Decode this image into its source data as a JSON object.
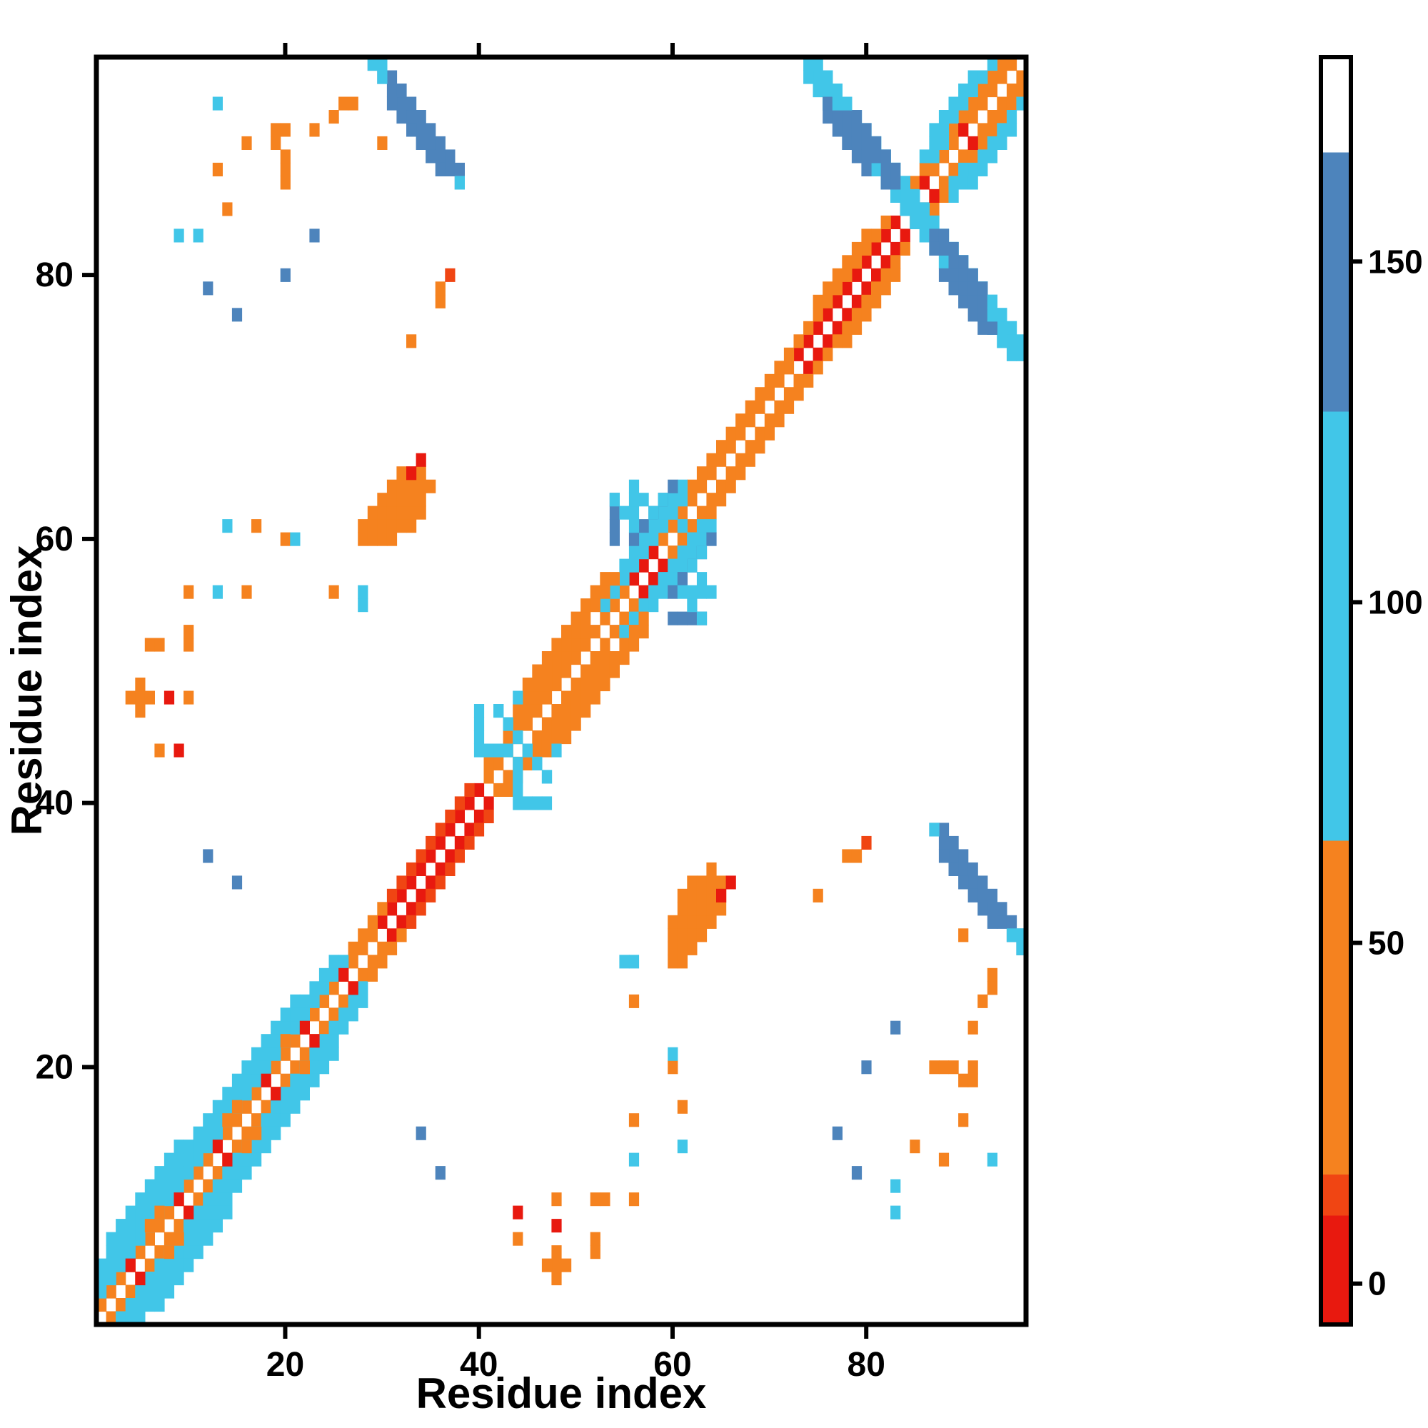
{
  "figure": {
    "background": "#ffffff",
    "frame_color": "#000000"
  },
  "chart_data": {
    "type": "heatmap",
    "title": "",
    "xlabel": "Residue index",
    "ylabel": "Residue index",
    "xlim": [
      0.5,
      96.5
    ],
    "ylim": [
      0.5,
      96.5
    ],
    "x_ticks": [
      20,
      40,
      60,
      80
    ],
    "y_ticks": [
      20,
      40,
      60,
      80
    ],
    "grid": false,
    "symmetric": true,
    "legend_position": "right-colorbar",
    "colorbar": {
      "ticks": [
        0,
        50,
        100,
        150
      ],
      "vmin": -6,
      "vmax": 180,
      "stops": [
        {
          "upto": 10,
          "color": "#e8190f"
        },
        {
          "upto": 16,
          "color": "#f04513"
        },
        {
          "upto": 65,
          "color": "#f5821f"
        },
        {
          "upto": 128,
          "color": "#41c6e8"
        },
        {
          "upto": 166,
          "color": "#4d84bc"
        },
        {
          "upto": 9999,
          "color": "#ffffff"
        }
      ]
    },
    "runs": [
      [
        1,
        2,
        "d",
        29,
        38
      ],
      [
        30,
        31,
        "d",
        11,
        6
      ],
      [
        41,
        42,
        "d",
        12,
        36
      ],
      [
        53,
        54,
        "d",
        3,
        30
      ],
      [
        56,
        57,
        "d",
        3,
        8
      ],
      [
        59,
        60,
        "d",
        14,
        38
      ],
      [
        73,
        74,
        "d",
        12,
        5
      ],
      [
        85,
        86,
        "d",
        11,
        32
      ],
      [
        1,
        3,
        "d",
        26,
        90
      ],
      [
        27,
        29,
        "d",
        4,
        42
      ],
      [
        31,
        33,
        "d",
        9,
        12
      ],
      [
        41,
        43,
        "d",
        11,
        45
      ],
      [
        53,
        55,
        "d",
        9,
        85
      ],
      [
        62,
        64,
        "d",
        11,
        42
      ],
      [
        73,
        75,
        "d",
        10,
        28
      ],
      [
        84,
        86,
        "d",
        11,
        45
      ],
      [
        1,
        4,
        "d",
        25,
        95
      ],
      [
        44,
        47,
        "d",
        11,
        48
      ],
      [
        55,
        58,
        "d",
        7,
        95
      ],
      [
        75,
        78,
        "d",
        6,
        30
      ],
      [
        86,
        89,
        "d",
        8,
        100
      ],
      [
        1,
        5,
        "d",
        21,
        88
      ],
      [
        45,
        49,
        "d",
        9,
        52
      ],
      [
        56,
        60,
        "d",
        5,
        135
      ],
      [
        87,
        91,
        "d",
        5,
        105
      ],
      [
        2,
        7,
        "d",
        8,
        90
      ],
      [
        74,
        96,
        "a",
        22,
        100
      ],
      [
        75,
        96,
        "a",
        21,
        95
      ],
      [
        74,
        95,
        "a",
        21,
        105
      ],
      [
        29,
        96,
        "a",
        10,
        150
      ],
      [
        30,
        96,
        "a",
        9,
        148
      ],
      [
        31,
        93,
        "a",
        6,
        140
      ],
      [
        40,
        44,
        "v",
        4,
        90
      ],
      [
        41,
        44,
        "h",
        3,
        88
      ],
      [
        42,
        47,
        "a",
        6,
        92
      ],
      [
        54,
        60,
        "v",
        4,
        140
      ],
      [
        56,
        61,
        "v",
        3,
        95
      ],
      [
        56,
        64,
        "a",
        4,
        100
      ],
      [
        59,
        63,
        "a",
        3,
        90
      ],
      [
        28,
        60,
        "h",
        4,
        45
      ],
      [
        28,
        61,
        "h",
        6,
        45
      ],
      [
        29,
        62,
        "h",
        6,
        42
      ],
      [
        30,
        63,
        "h",
        5,
        40
      ],
      [
        31,
        64,
        "h",
        5,
        38
      ],
      [
        32,
        65,
        "h",
        3,
        36
      ],
      [
        20,
        87,
        "v",
        3,
        40
      ]
    ],
    "cells": [
      [
        4,
        5,
        4
      ],
      [
        9,
        10,
        3
      ],
      [
        13,
        14,
        4
      ],
      [
        18,
        19,
        3
      ],
      [
        22,
        23,
        4
      ],
      [
        26,
        27,
        3
      ],
      [
        86,
        87,
        5
      ],
      [
        90,
        91,
        6
      ],
      [
        6,
        8,
        40
      ],
      [
        7,
        9,
        40
      ],
      [
        14,
        16,
        42
      ],
      [
        15,
        17,
        42
      ],
      [
        20,
        22,
        45
      ],
      [
        87,
        89,
        95
      ],
      [
        88,
        90,
        95
      ],
      [
        33,
        65,
        6
      ],
      [
        34,
        66,
        6
      ],
      [
        29,
        96,
        95
      ],
      [
        30,
        95,
        95
      ],
      [
        38,
        87,
        95
      ],
      [
        30,
        96,
        90
      ],
      [
        76,
        92,
        150
      ],
      [
        76,
        93,
        148
      ],
      [
        77,
        91,
        152
      ],
      [
        77,
        92,
        150
      ],
      [
        78,
        90,
        150
      ],
      [
        78,
        91,
        152
      ],
      [
        79,
        89,
        148
      ],
      [
        79,
        90,
        150
      ],
      [
        80,
        88,
        140
      ],
      [
        80,
        89,
        145
      ],
      [
        87,
        83,
        145
      ],
      [
        88,
        82,
        148
      ],
      [
        89,
        81,
        150
      ],
      [
        90,
        80,
        150
      ],
      [
        91,
        79,
        148
      ],
      [
        92,
        78,
        145
      ],
      [
        88,
        83,
        140
      ],
      [
        89,
        82,
        145
      ],
      [
        90,
        81,
        148
      ],
      [
        91,
        80,
        145
      ],
      [
        92,
        79,
        140
      ],
      [
        87,
        82,
        150
      ],
      [
        93,
        77,
        120
      ],
      [
        93,
        78,
        118
      ],
      [
        44,
        48,
        90
      ],
      [
        55,
        62,
        95
      ],
      [
        54,
        63,
        90
      ],
      [
        13,
        88,
        40
      ],
      [
        19,
        90,
        42
      ],
      [
        19,
        91,
        40
      ],
      [
        20,
        91,
        42
      ],
      [
        23,
        91,
        40
      ],
      [
        26,
        93,
        42
      ],
      [
        27,
        93,
        40
      ],
      [
        9,
        83,
        90
      ],
      [
        11,
        83,
        85
      ],
      [
        12,
        79,
        150
      ],
      [
        15,
        77,
        148
      ],
      [
        36,
        78,
        40
      ],
      [
        36,
        79,
        42
      ],
      [
        37,
        80,
        15
      ],
      [
        33,
        75,
        40
      ],
      [
        14,
        61,
        88
      ],
      [
        17,
        61,
        40
      ],
      [
        20,
        60,
        40
      ],
      [
        21,
        60,
        88
      ],
      [
        10,
        56,
        42
      ],
      [
        13,
        56,
        88
      ],
      [
        16,
        56,
        40
      ],
      [
        25,
        56,
        40
      ],
      [
        28,
        56,
        88
      ],
      [
        28,
        55,
        85
      ],
      [
        6,
        52,
        42
      ],
      [
        7,
        52,
        40
      ],
      [
        10,
        52,
        42
      ],
      [
        10,
        53,
        40
      ],
      [
        4,
        48,
        45
      ],
      [
        5,
        48,
        42
      ],
      [
        6,
        48,
        40
      ],
      [
        5,
        47,
        42
      ],
      [
        5,
        49,
        40
      ],
      [
        8,
        48,
        4
      ],
      [
        10,
        48,
        40
      ],
      [
        7,
        44,
        40
      ],
      [
        9,
        44,
        4
      ],
      [
        12,
        36,
        150
      ],
      [
        15,
        34,
        148
      ],
      [
        20,
        80,
        150
      ],
      [
        23,
        83,
        150
      ],
      [
        14,
        85,
        45
      ],
      [
        16,
        90,
        42
      ],
      [
        30,
        90,
        42
      ],
      [
        25,
        92,
        45
      ],
      [
        13,
        93,
        90
      ]
    ]
  }
}
